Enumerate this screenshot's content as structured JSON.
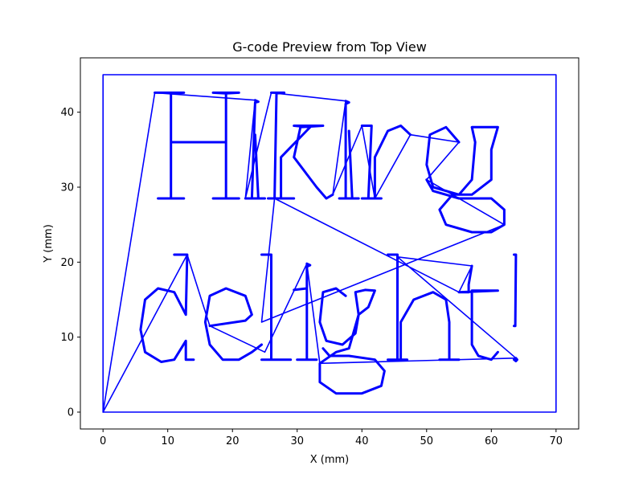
{
  "chart_data": {
    "type": "line",
    "title": "G-code Preview from Top View",
    "xlabel": "X (mm)",
    "ylabel": "Y (mm)",
    "xlim": [
      -3.5,
      73.5
    ],
    "ylim": [
      -2.25,
      47.25
    ],
    "xticks": [
      0,
      10,
      20,
      30,
      40,
      50,
      60,
      70
    ],
    "yticks": [
      0,
      10,
      20,
      30,
      40
    ],
    "grid": false,
    "line_color": "#0000ff",
    "series": [
      {
        "points": [
          [
            0,
            0
          ],
          [
            70,
            0
          ],
          [
            70,
            45
          ],
          [
            0,
            45
          ],
          [
            0,
            0
          ]
        ]
      },
      {
        "points": [
          [
            8,
            42.6
          ],
          [
            12.5,
            42.6
          ],
          [
            10.5,
            42.5
          ],
          [
            10.5,
            28.5
          ],
          [
            8.5,
            28.5
          ],
          [
            12.5,
            28.5
          ],
          [
            10.5,
            28.5
          ],
          [
            10.5,
            36
          ],
          [
            19,
            36
          ],
          [
            19,
            42.5
          ],
          [
            17,
            42.6
          ],
          [
            21,
            42.6
          ],
          [
            19,
            42.5
          ],
          [
            19,
            28.5
          ],
          [
            17,
            28.5
          ],
          [
            21,
            28.5
          ]
        ]
      },
      {
        "points": [
          [
            23.5,
            41.6
          ],
          [
            24,
            41.4
          ],
          [
            23.5,
            41.3
          ],
          [
            23,
            28.5
          ],
          [
            22,
            28.5
          ],
          [
            25,
            28.5
          ],
          [
            24,
            28.5
          ],
          [
            23.5,
            37
          ]
        ]
      },
      {
        "points": [
          [
            26,
            42.6
          ],
          [
            28,
            42.6
          ],
          [
            26.8,
            42.5
          ],
          [
            26.5,
            28.5
          ],
          [
            25.5,
            28.5
          ],
          [
            29.5,
            28.5
          ],
          [
            27.5,
            28.5
          ],
          [
            27.5,
            34
          ],
          [
            32,
            38
          ],
          [
            29.5,
            38.2
          ],
          [
            34,
            38.2
          ],
          [
            30.5,
            38
          ],
          [
            29.5,
            34
          ],
          [
            33,
            30
          ],
          [
            34.5,
            28.5
          ],
          [
            35.5,
            29
          ]
        ]
      },
      {
        "points": [
          [
            37.5,
            41.5
          ],
          [
            38,
            41.3
          ],
          [
            37.5,
            41.1
          ],
          [
            37.5,
            28.5
          ],
          [
            36.5,
            28.5
          ],
          [
            39.5,
            28.5
          ],
          [
            38.5,
            28.5
          ],
          [
            38,
            37.5
          ]
        ]
      },
      {
        "points": [
          [
            40,
            38.2
          ],
          [
            41.5,
            38.2
          ],
          [
            41,
            28.5
          ],
          [
            40,
            28.5
          ],
          [
            43,
            28.5
          ],
          [
            42,
            28.5
          ],
          [
            42,
            34
          ],
          [
            44,
            37.5
          ],
          [
            46,
            38.2
          ],
          [
            47.5,
            37
          ]
        ]
      },
      {
        "points": [
          [
            55,
            36
          ],
          [
            53,
            38
          ],
          [
            50.5,
            37
          ],
          [
            50,
            33
          ],
          [
            51,
            30
          ],
          [
            55,
            29
          ],
          [
            57,
            31
          ],
          [
            57.5,
            36
          ],
          [
            57,
            38
          ],
          [
            59,
            38
          ],
          [
            60,
            38
          ],
          [
            61,
            38
          ],
          [
            60,
            35
          ],
          [
            60,
            31
          ],
          [
            57,
            29
          ],
          [
            54,
            29
          ],
          [
            52,
            27
          ],
          [
            53,
            25
          ],
          [
            57,
            24
          ],
          [
            60,
            24
          ],
          [
            62,
            25
          ],
          [
            62,
            27
          ],
          [
            60,
            28.5
          ],
          [
            55,
            28.5
          ],
          [
            51,
            29.5
          ],
          [
            50,
            31
          ]
        ]
      },
      {
        "points": [
          [
            13,
            21
          ],
          [
            11,
            21
          ],
          [
            13,
            21
          ],
          [
            12.8,
            13
          ],
          [
            11,
            16
          ],
          [
            8.5,
            16.5
          ],
          [
            6.5,
            15
          ],
          [
            5.8,
            11
          ],
          [
            6.5,
            8
          ],
          [
            9,
            6.7
          ],
          [
            11,
            7
          ],
          [
            12.8,
            9.5
          ],
          [
            12.8,
            7
          ],
          [
            14,
            7
          ],
          [
            13,
            7
          ]
        ]
      },
      {
        "points": [
          [
            16.5,
            11.5
          ],
          [
            22,
            12.2
          ],
          [
            23,
            13
          ],
          [
            22,
            15.5
          ],
          [
            19,
            16.5
          ],
          [
            16.5,
            15.5
          ],
          [
            15.8,
            12
          ],
          [
            16.5,
            9
          ],
          [
            18.5,
            7
          ],
          [
            21,
            7
          ],
          [
            23,
            8
          ],
          [
            24.5,
            9
          ]
        ]
      },
      {
        "points": [
          [
            26,
            21
          ],
          [
            24.5,
            21
          ],
          [
            26,
            21
          ],
          [
            26,
            7
          ],
          [
            24.5,
            7
          ],
          [
            29,
            7
          ],
          [
            27.5,
            7
          ]
        ]
      },
      {
        "points": [
          [
            31.5,
            19.8
          ],
          [
            32,
            19.6
          ],
          [
            31.5,
            19.4
          ],
          [
            31.5,
            7
          ],
          [
            30,
            7
          ],
          [
            33,
            7
          ],
          [
            31.5,
            7
          ],
          [
            31.5,
            16.5
          ],
          [
            29.5,
            16.3
          ]
        ]
      },
      {
        "points": [
          [
            37.5,
            15.5
          ],
          [
            36,
            16.5
          ],
          [
            34,
            16
          ],
          [
            33.5,
            12
          ],
          [
            34.5,
            9.5
          ],
          [
            37,
            9
          ],
          [
            39,
            10.5
          ],
          [
            39.5,
            13
          ],
          [
            39,
            16
          ],
          [
            40.5,
            16.3
          ],
          [
            42,
            16.2
          ],
          [
            41,
            14
          ],
          [
            39.5,
            13
          ],
          [
            38,
            8.5
          ],
          [
            36,
            8
          ],
          [
            33.5,
            6.5
          ],
          [
            33.5,
            4
          ],
          [
            36,
            2.5
          ],
          [
            40,
            2.5
          ],
          [
            43,
            3.5
          ],
          [
            43.5,
            5.5
          ],
          [
            42,
            7
          ],
          [
            38,
            7.5
          ],
          [
            35,
            7.5
          ],
          [
            34,
            8.5
          ]
        ]
      },
      {
        "points": [
          [
            44,
            21
          ],
          [
            45.5,
            21
          ],
          [
            45.5,
            7
          ],
          [
            44,
            7
          ],
          [
            47,
            7
          ],
          [
            46,
            7
          ],
          [
            46,
            12
          ],
          [
            48,
            15
          ],
          [
            51,
            16
          ],
          [
            53,
            15
          ],
          [
            53.5,
            12
          ],
          [
            53.5,
            7
          ],
          [
            52,
            7
          ],
          [
            55,
            7
          ]
        ]
      },
      {
        "points": [
          [
            57,
            19.5
          ],
          [
            56.5,
            17
          ],
          [
            56.5,
            16
          ],
          [
            55,
            16
          ],
          [
            61,
            16.2
          ],
          [
            57,
            16.2
          ],
          [
            57,
            9
          ],
          [
            58,
            7.5
          ],
          [
            60,
            7
          ],
          [
            61,
            8
          ]
        ]
      },
      {
        "points": [
          [
            63.5,
            21
          ],
          [
            63.8,
            21
          ],
          [
            63.7,
            11.5
          ],
          [
            63.5,
            11.5
          ]
        ]
      },
      {
        "points": [
          [
            63.8,
            7.2
          ],
          [
            64,
            7
          ],
          [
            63.8,
            6.8
          ],
          [
            63.5,
            7
          ]
        ]
      },
      {
        "points": [
          [
            0,
            0
          ],
          [
            8,
            42.6
          ],
          [
            23.5,
            41.6
          ],
          [
            22,
            28.5
          ],
          [
            26,
            42.6
          ],
          [
            37.5,
            41.5
          ],
          [
            35.5,
            29
          ],
          [
            40,
            38.2
          ],
          [
            42,
            28.5
          ],
          [
            47.5,
            37
          ],
          [
            55,
            36
          ],
          [
            50,
            31
          ],
          [
            62,
            25
          ],
          [
            24.5,
            12
          ],
          [
            26.5,
            28.5
          ],
          [
            55,
            16
          ],
          [
            57,
            19.5
          ],
          [
            45.5,
            20.7
          ],
          [
            63.8,
            7.2
          ],
          [
            33.5,
            6.5
          ],
          [
            31.5,
            19.8
          ],
          [
            25,
            8
          ],
          [
            16.5,
            11.5
          ],
          [
            13,
            21
          ],
          [
            0,
            0
          ]
        ]
      }
    ]
  }
}
